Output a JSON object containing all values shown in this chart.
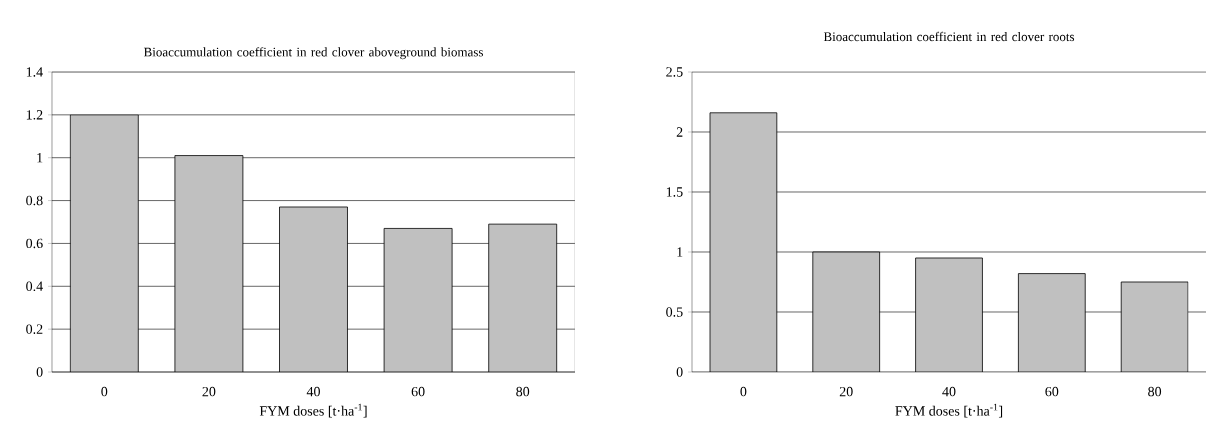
{
  "chart_data": [
    {
      "type": "bar",
      "title": "Bioaccumulation coefficient  in red clover aboveground biomass",
      "xlabel": "FYM doses [t·ha$^{-1}$]",
      "categories": [
        "0",
        "20",
        "40",
        "60",
        "80"
      ],
      "values": [
        1.2,
        1.01,
        0.77,
        0.67,
        0.69
      ],
      "color": "#c0c0c0",
      "ylim": [
        0,
        1.4
      ],
      "yticks": [
        0,
        {
          "value": 0.2,
          "label": "0.2"
        },
        {
          "value": 0.4,
          "label": "0.4"
        },
        {
          "value": 0.6,
          "label": "0.6"
        },
        {
          "value": 0.8,
          "label": "0.8"
        },
        1,
        {
          "value": 1.2,
          "label": "1.2"
        },
        {
          "value": 1.4,
          "label": "1.4"
        }
      ],
      "grid": "y"
    },
    {
      "type": "bar",
      "title": "Bioaccumulation coefficient  in red clover roots",
      "xlabel": "FYM doses [t·ha$^{-1}$]",
      "categories": [
        "0",
        "20",
        "40",
        "60",
        "80"
      ],
      "values": [
        2.16,
        1.0,
        0.95,
        0.82,
        0.75
      ],
      "color": "#c0c0c0",
      "ylim": [
        0,
        2.5
      ],
      "yticks": [
        0,
        {
          "value": 0.5,
          "label": "0.5"
        },
        1,
        {
          "value": 1.5,
          "label": "1.5"
        },
        2,
        {
          "value": 2.5,
          "label": "2.5"
        }
      ],
      "grid": "y"
    }
  ]
}
